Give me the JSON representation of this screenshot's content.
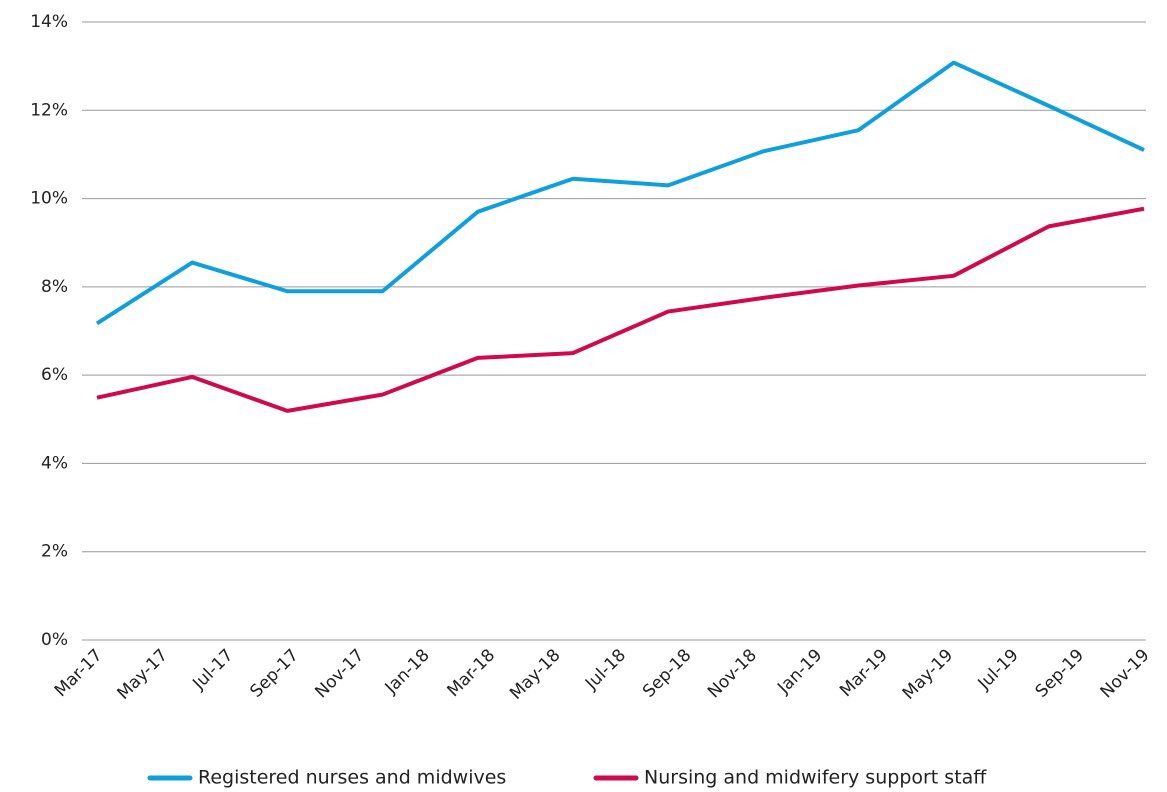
{
  "chart_data": {
    "type": "line",
    "xticks": [
      "Mar-17",
      "May-17",
      "Jul-17",
      "Sep-17",
      "Nov-17",
      "Jan-18",
      "Mar-18",
      "May-18",
      "Jul-18",
      "Sep-18",
      "Nov-18",
      "Jan-19",
      "Mar-19",
      "May-19",
      "Jul-19",
      "Sep-19",
      "Nov-19"
    ],
    "series": [
      {
        "name": "Registered nurses and midwives",
        "color": "#0ea0dc",
        "values": [
          7.17,
          8.55,
          7.9,
          7.9,
          9.7,
          10.45,
          10.3,
          11.07,
          11.55,
          13.08,
          12.1,
          11.1
        ]
      },
      {
        "name": "Nursing and midwifery support staff",
        "color": "#d2084c",
        "values": [
          5.49,
          5.96,
          5.19,
          5.56,
          6.39,
          6.5,
          7.44,
          7.75,
          8.03,
          8.25,
          9.37,
          9.77
        ]
      }
    ],
    "ylim": [
      0,
      14
    ],
    "yticks": [
      {
        "value": 0,
        "label": "0%"
      },
      {
        "value": 2,
        "label": "2%"
      },
      {
        "value": 4,
        "label": "4%"
      },
      {
        "value": 6,
        "label": "6%"
      },
      {
        "value": 8,
        "label": "8%"
      },
      {
        "value": 10,
        "label": "10%"
      },
      {
        "value": 12,
        "label": "12%"
      },
      {
        "value": 14,
        "label": "14%"
      }
    ],
    "grid": true,
    "legend": "bottom"
  }
}
